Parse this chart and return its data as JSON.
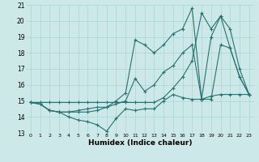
{
  "xlabel": "Humidex (Indice chaleur)",
  "xlim": [
    -0.5,
    23.5
  ],
  "ylim": [
    13,
    21
  ],
  "yticks": [
    13,
    14,
    15,
    16,
    17,
    18,
    19,
    20,
    21
  ],
  "xticks": [
    0,
    1,
    2,
    3,
    4,
    5,
    6,
    7,
    8,
    9,
    10,
    11,
    12,
    13,
    14,
    15,
    16,
    17,
    18,
    19,
    20,
    21,
    22,
    23
  ],
  "bg_color": "#cce8e8",
  "line_color": "#2a7070",
  "grid_color": "#aad4d4",
  "series": [
    [
      14.9,
      14.8,
      14.4,
      14.3,
      14.0,
      13.8,
      13.7,
      13.5,
      13.1,
      13.9,
      14.5,
      14.4,
      14.5,
      14.5,
      15.0,
      15.4,
      15.2,
      15.1,
      15.1,
      15.3,
      15.4,
      15.4,
      15.4,
      15.4
    ],
    [
      14.9,
      14.8,
      14.4,
      14.3,
      14.3,
      14.3,
      14.3,
      14.4,
      14.6,
      14.8,
      15.0,
      16.4,
      15.6,
      16.0,
      16.8,
      17.2,
      18.0,
      18.5,
      15.1,
      15.1,
      18.5,
      18.3,
      16.5,
      15.4
    ],
    [
      14.9,
      14.9,
      14.9,
      14.9,
      14.9,
      14.9,
      14.9,
      14.9,
      14.9,
      14.9,
      14.9,
      14.9,
      14.9,
      14.9,
      15.2,
      15.8,
      16.5,
      17.5,
      20.5,
      19.5,
      20.3,
      19.5,
      17.0,
      15.4
    ],
    [
      14.9,
      14.8,
      14.4,
      14.3,
      14.3,
      14.4,
      14.5,
      14.6,
      14.6,
      15.0,
      15.5,
      18.8,
      18.5,
      18.0,
      18.5,
      19.2,
      19.5,
      20.8,
      15.1,
      19.0,
      20.3,
      18.3,
      16.5,
      15.4
    ]
  ]
}
